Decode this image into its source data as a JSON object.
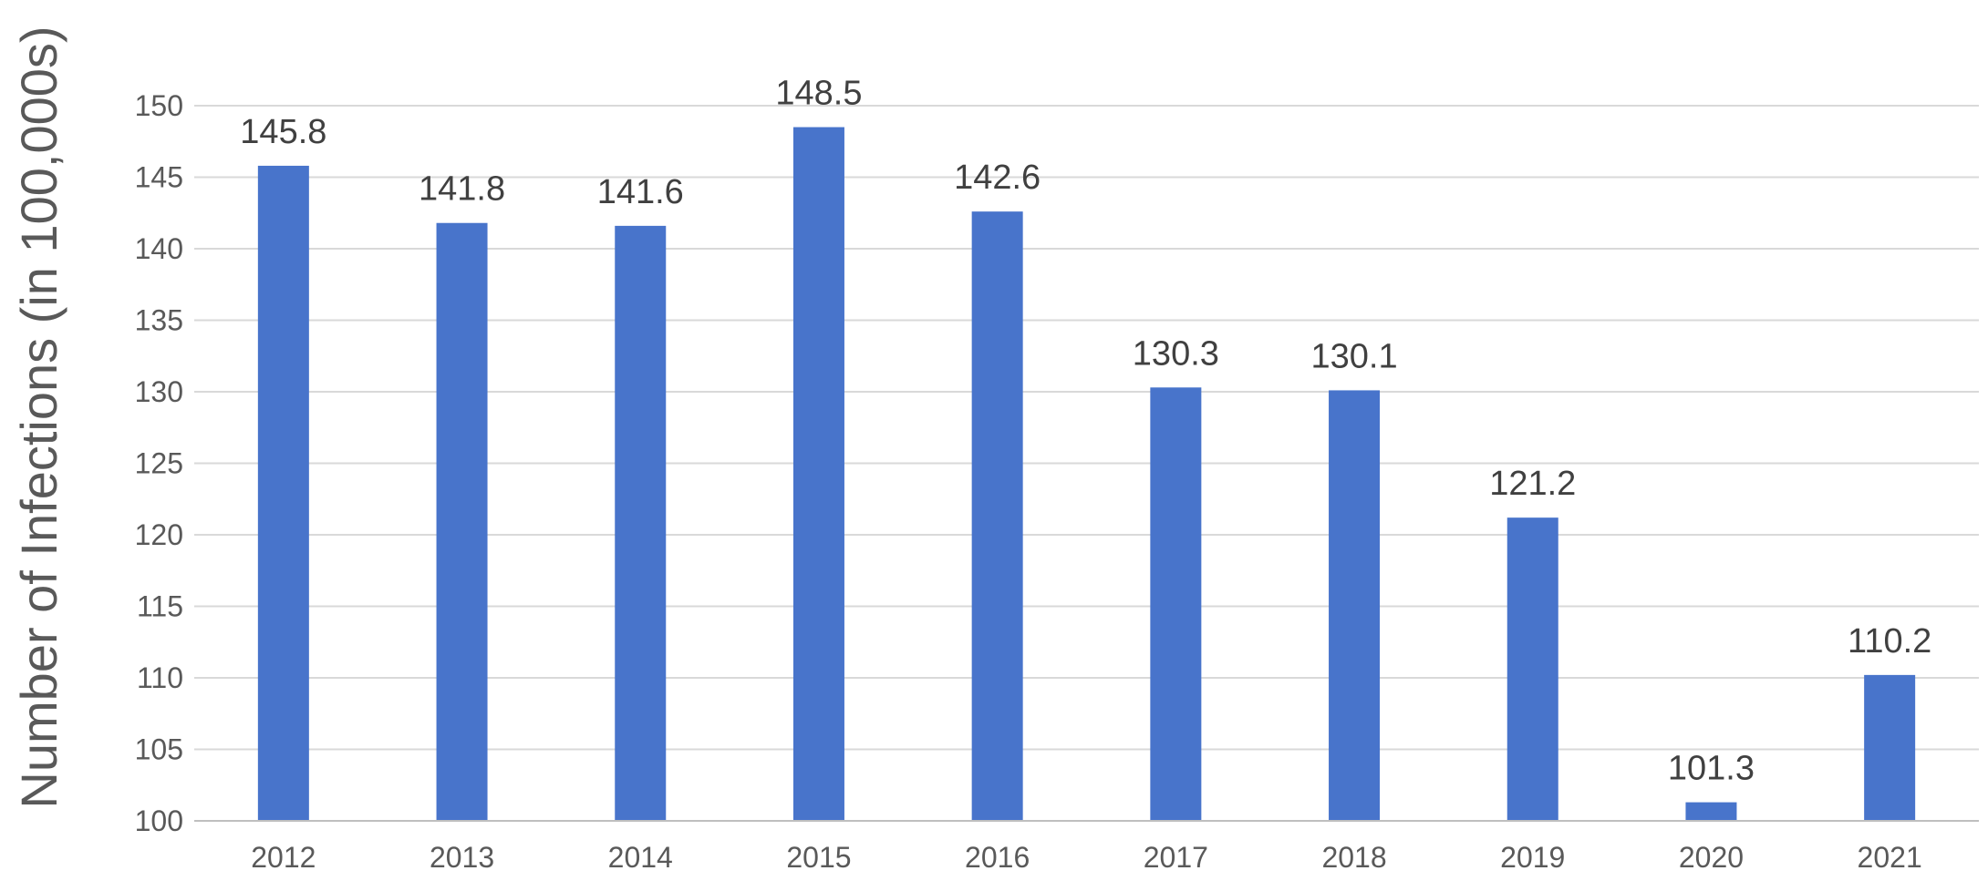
{
  "chart_data": {
    "type": "bar",
    "title": "",
    "xlabel": "",
    "ylabel": "Number of Infections (in 100,000s)",
    "categories": [
      "2012",
      "2013",
      "2014",
      "2015",
      "2016",
      "2017",
      "2018",
      "2019",
      "2020",
      "2021"
    ],
    "values": [
      145.8,
      141.8,
      141.6,
      148.5,
      142.6,
      130.3,
      130.1,
      121.2,
      101.3,
      110.2
    ],
    "data_labels": [
      "145.8",
      "141.8",
      "141.6",
      "148.5",
      "142.6",
      "130.3",
      "130.1",
      "121.2",
      "101.3",
      "110.2"
    ],
    "ylim": [
      100,
      150
    ],
    "yticks": [
      100,
      105,
      110,
      115,
      120,
      125,
      130,
      135,
      140,
      145,
      150
    ],
    "grid": true,
    "legend": "none",
    "colors": {
      "bar": "#4874cb",
      "grid": "#d9d9d9",
      "axis": "#bfbfbf",
      "tick_text": "#595959",
      "label_text": "#404040"
    }
  }
}
